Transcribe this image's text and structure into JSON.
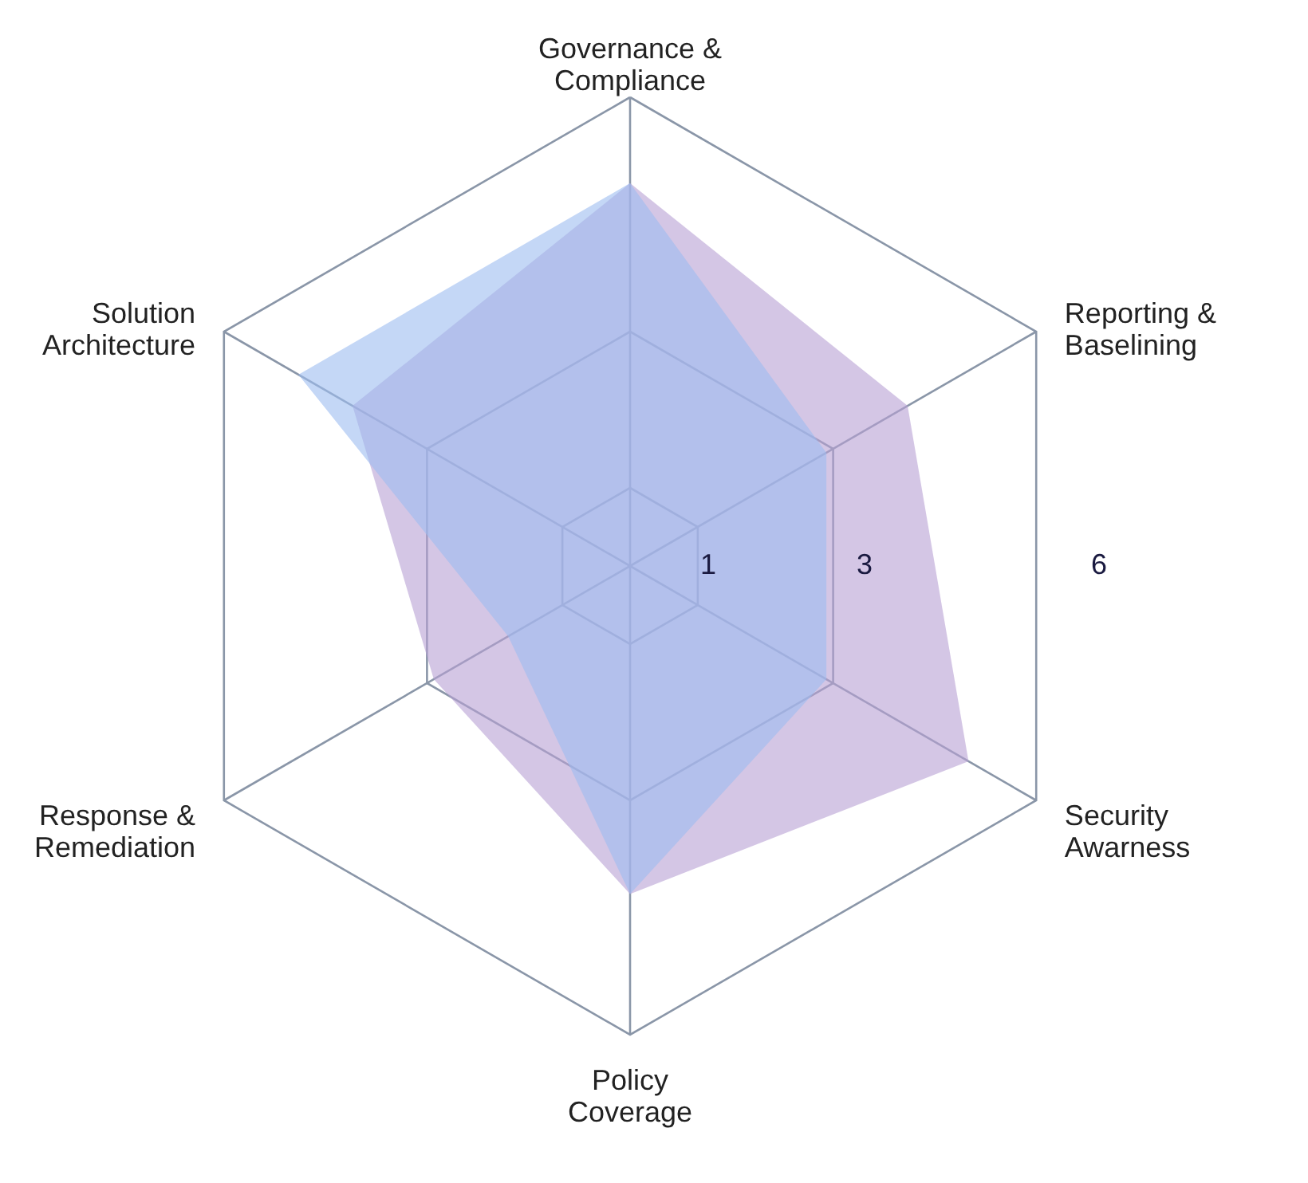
{
  "chart_data": {
    "type": "radar",
    "categories": [
      "Governance & Compliance",
      "Reporting & Baselining",
      "Security Awarness",
      "Policy Coverage",
      "Response & Remediation",
      "Solution Architecture"
    ],
    "ylim": [
      0,
      6
    ],
    "yticks": [
      1,
      3,
      6
    ],
    "series": [
      {
        "color": "#b7a0d3",
        "values": [
          4.9,
          4.1,
          5.0,
          4.2,
          2.9,
          4.1
        ]
      },
      {
        "color": "#9dbdf0",
        "values": [
          4.9,
          2.9,
          2.9,
          4.2,
          1.8,
          4.9
        ]
      }
    ]
  }
}
